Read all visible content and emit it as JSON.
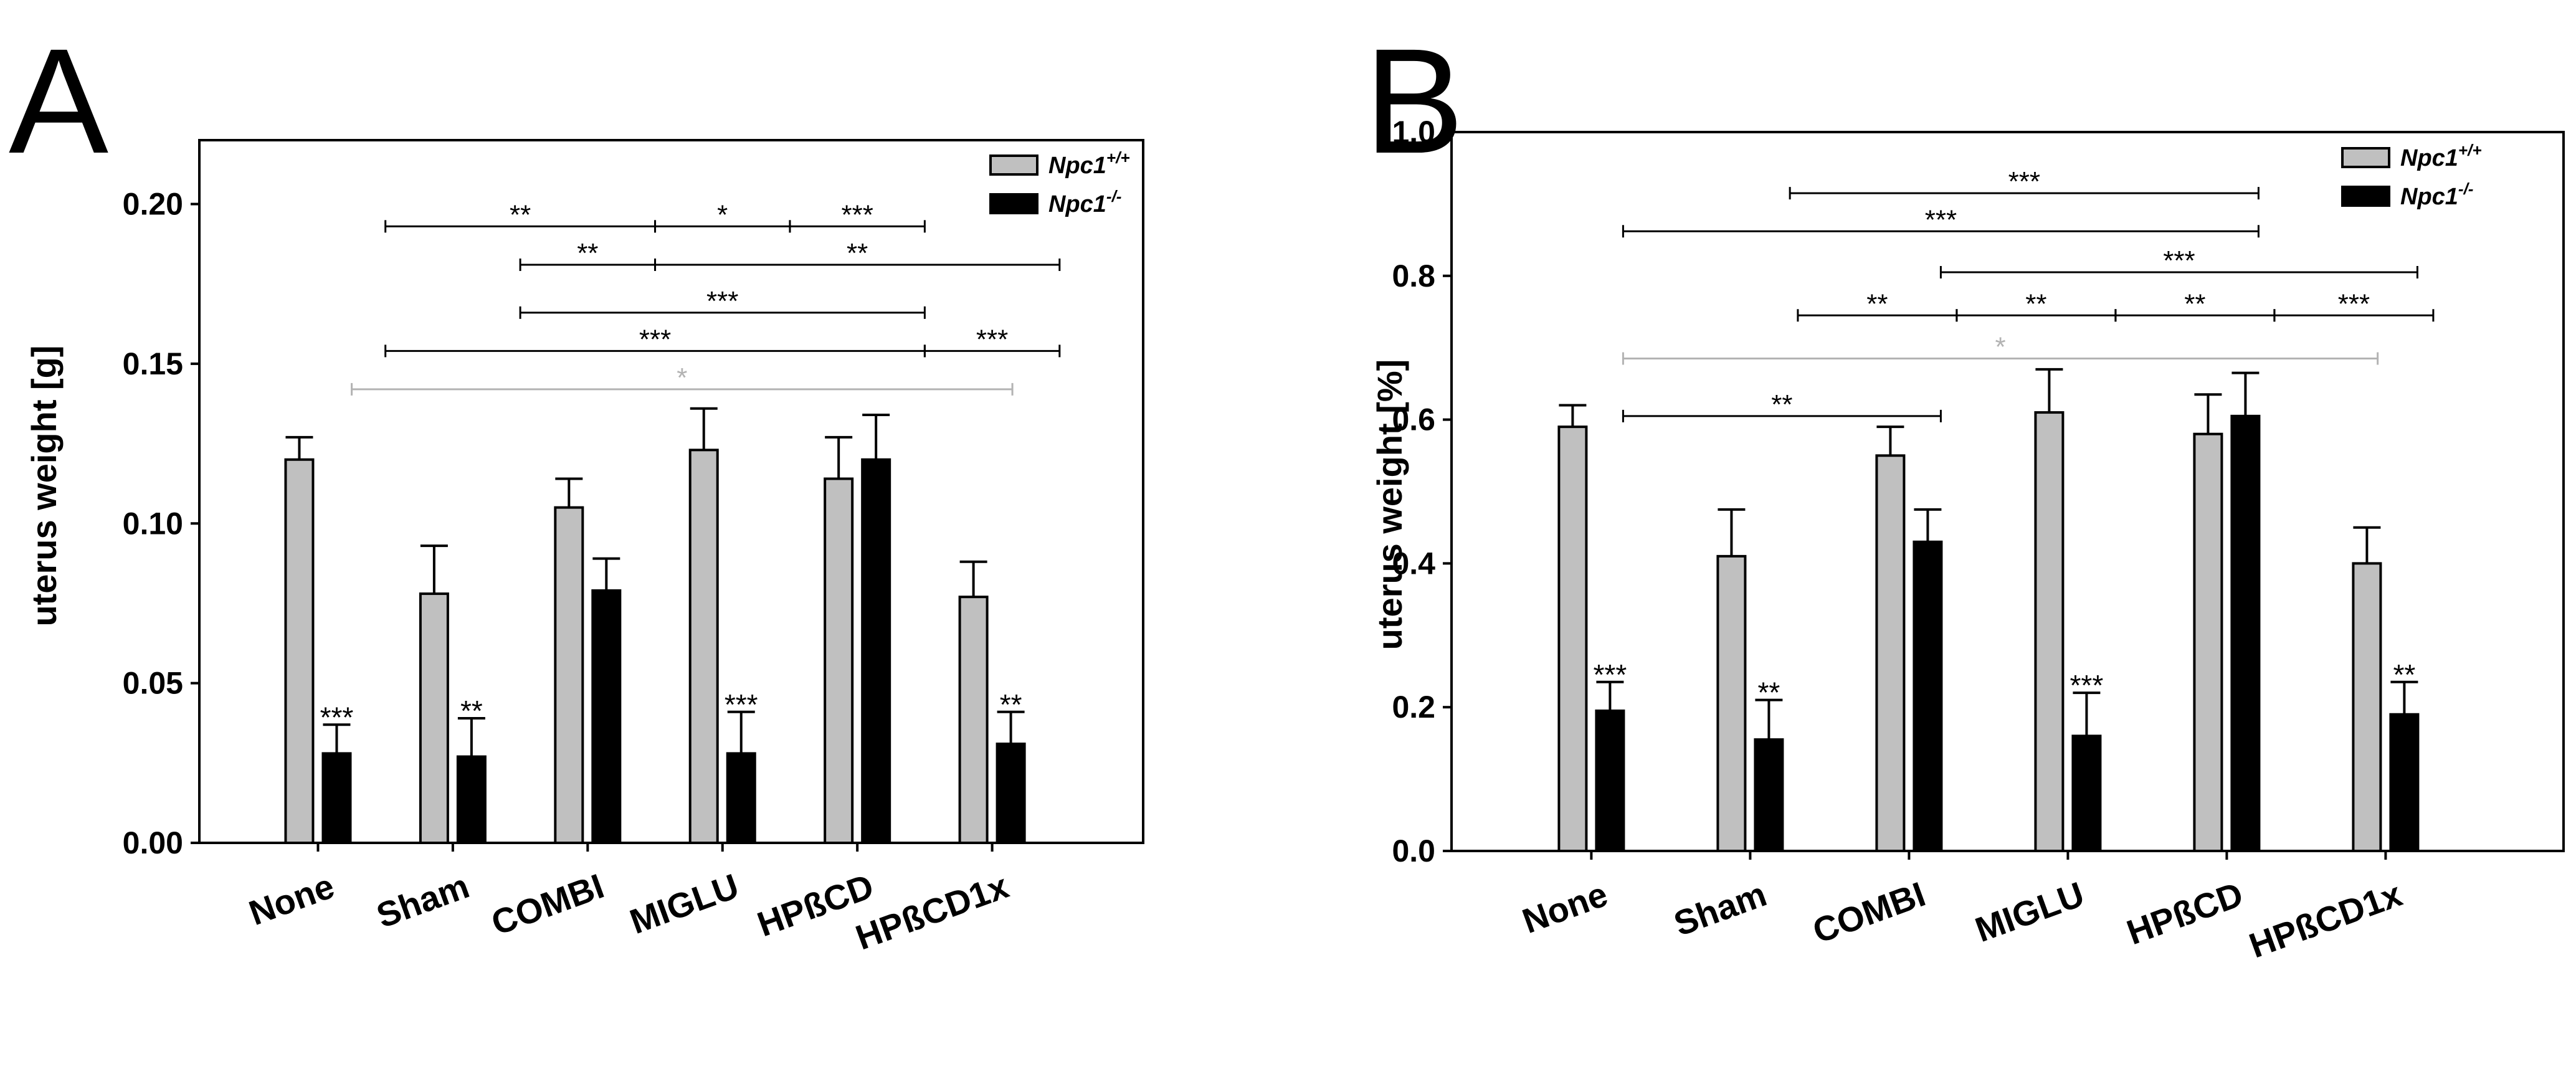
{
  "colors": {
    "wildtype": "#c0c0c0",
    "knockout": "#000000",
    "grey_annotation": "#b3b3b3"
  },
  "chart_data": [
    {
      "type": "bar",
      "panel": "A",
      "ylabel": "uterus weight [g]",
      "xlabel": "",
      "ylim": [
        0,
        0.22
      ],
      "yticks": [
        {
          "v": 0.0,
          "label": "0.00"
        },
        {
          "v": 0.05,
          "label": "0.05"
        },
        {
          "v": 0.1,
          "label": "0.10"
        },
        {
          "v": 0.15,
          "label": "0.15"
        },
        {
          "v": 0.2,
          "label": "0.20"
        }
      ],
      "categories": [
        "None",
        "Sham",
        "COMBI",
        "MIGLU",
        "HPßCD",
        "HPßCD1x"
      ],
      "legend": {
        "position": "top-right",
        "entries": [
          {
            "base": "Npc1",
            "sup": "+/+",
            "series": 0
          },
          {
            "base": "Npc1",
            "sup": "-/-",
            "series": 1
          }
        ]
      },
      "series": [
        {
          "name": "Npc1+/+",
          "values": [
            0.12,
            0.078,
            0.105,
            0.123,
            0.114,
            0.077
          ],
          "errors": [
            0.007,
            0.015,
            0.009,
            0.013,
            0.013,
            0.011
          ]
        },
        {
          "name": "Npc1-/-",
          "values": [
            0.028,
            0.027,
            0.079,
            0.028,
            0.12,
            0.031
          ],
          "errors": [
            0.009,
            0.012,
            0.01,
            0.013,
            0.014,
            0.01
          ]
        }
      ],
      "bar_annotations": [
        {
          "cat": 0,
          "series": 1,
          "text": "***"
        },
        {
          "cat": 1,
          "series": 1,
          "text": "**"
        },
        {
          "cat": 3,
          "series": 1,
          "text": "***"
        },
        {
          "cat": 5,
          "series": 1,
          "text": "**"
        }
      ],
      "brackets": [
        {
          "y": 0.193,
          "from": 0.5,
          "to": 2.5,
          "text": "**",
          "color": "black"
        },
        {
          "y": 0.193,
          "from": 2.5,
          "to": 3.5,
          "text": "*",
          "color": "black"
        },
        {
          "y": 0.193,
          "from": 3.5,
          "to": 4.5,
          "text": "***",
          "color": "black"
        },
        {
          "y": 0.181,
          "from": 1.5,
          "to": 2.5,
          "text": "**",
          "color": "black"
        },
        {
          "y": 0.181,
          "from": 2.5,
          "to": 5.5,
          "text": "**",
          "color": "black"
        },
        {
          "y": 0.166,
          "from": 1.5,
          "to": 4.5,
          "text": "***",
          "color": "black"
        },
        {
          "y": 0.154,
          "from": 0.5,
          "to": 4.5,
          "text": "***",
          "color": "black"
        },
        {
          "y": 0.154,
          "from": 4.5,
          "to": 5.5,
          "text": "***",
          "color": "black"
        },
        {
          "y": 0.142,
          "from": 0.25,
          "to": 5.15,
          "text": "*",
          "color": "grey"
        }
      ]
    },
    {
      "type": "bar",
      "panel": "B",
      "ylabel": "uterus weight [%]",
      "xlabel": "",
      "ylim": [
        0,
        1.0
      ],
      "yticks": [
        {
          "v": 0.0,
          "label": "0.0"
        },
        {
          "v": 0.2,
          "label": "0.2"
        },
        {
          "v": 0.4,
          "label": "0.4"
        },
        {
          "v": 0.6,
          "label": "0.6"
        },
        {
          "v": 0.8,
          "label": "0.8"
        },
        {
          "v": 1.0,
          "label": "1.0"
        }
      ],
      "categories": [
        "None",
        "Sham",
        "COMBI",
        "MIGLU",
        "HPßCD",
        "HPßCD1x"
      ],
      "legend": {
        "position": "top-right",
        "entries": [
          {
            "base": "Npc1",
            "sup": "+/+",
            "series": 0
          },
          {
            "base": "Npc1",
            "sup": "-/-",
            "series": 1
          }
        ]
      },
      "series": [
        {
          "name": "Npc1+/+",
          "values": [
            0.59,
            0.41,
            0.55,
            0.61,
            0.58,
            0.4
          ],
          "errors": [
            0.03,
            0.065,
            0.04,
            0.06,
            0.055,
            0.05
          ]
        },
        {
          "name": "Npc1-/-",
          "values": [
            0.195,
            0.155,
            0.43,
            0.16,
            0.605,
            0.19
          ],
          "errors": [
            0.04,
            0.055,
            0.045,
            0.06,
            0.06,
            0.045
          ]
        }
      ],
      "bar_annotations": [
        {
          "cat": 0,
          "series": 1,
          "text": "***"
        },
        {
          "cat": 1,
          "series": 1,
          "text": "**"
        },
        {
          "cat": 3,
          "series": 1,
          "text": "***"
        },
        {
          "cat": 5,
          "series": 1,
          "text": "**"
        }
      ],
      "brackets": [
        {
          "y": 0.915,
          "from": 1.25,
          "to": 4.2,
          "text": "***",
          "color": "black"
        },
        {
          "y": 0.862,
          "from": 0.2,
          "to": 4.2,
          "text": "***",
          "color": "black"
        },
        {
          "y": 0.805,
          "from": 2.2,
          "to": 5.2,
          "text": "***",
          "color": "black"
        },
        {
          "y": 0.745,
          "from": 1.3,
          "to": 2.3,
          "text": "**",
          "color": "black"
        },
        {
          "y": 0.745,
          "from": 2.3,
          "to": 3.3,
          "text": "**",
          "color": "black"
        },
        {
          "y": 0.745,
          "from": 3.3,
          "to": 4.3,
          "text": "**",
          "color": "black"
        },
        {
          "y": 0.745,
          "from": 4.3,
          "to": 5.3,
          "text": "***",
          "color": "black"
        },
        {
          "y": 0.685,
          "from": 0.2,
          "to": 4.95,
          "text": "*",
          "color": "grey"
        },
        {
          "y": 0.605,
          "from": 0.2,
          "to": 2.2,
          "text": "**",
          "color": "black"
        }
      ]
    }
  ]
}
